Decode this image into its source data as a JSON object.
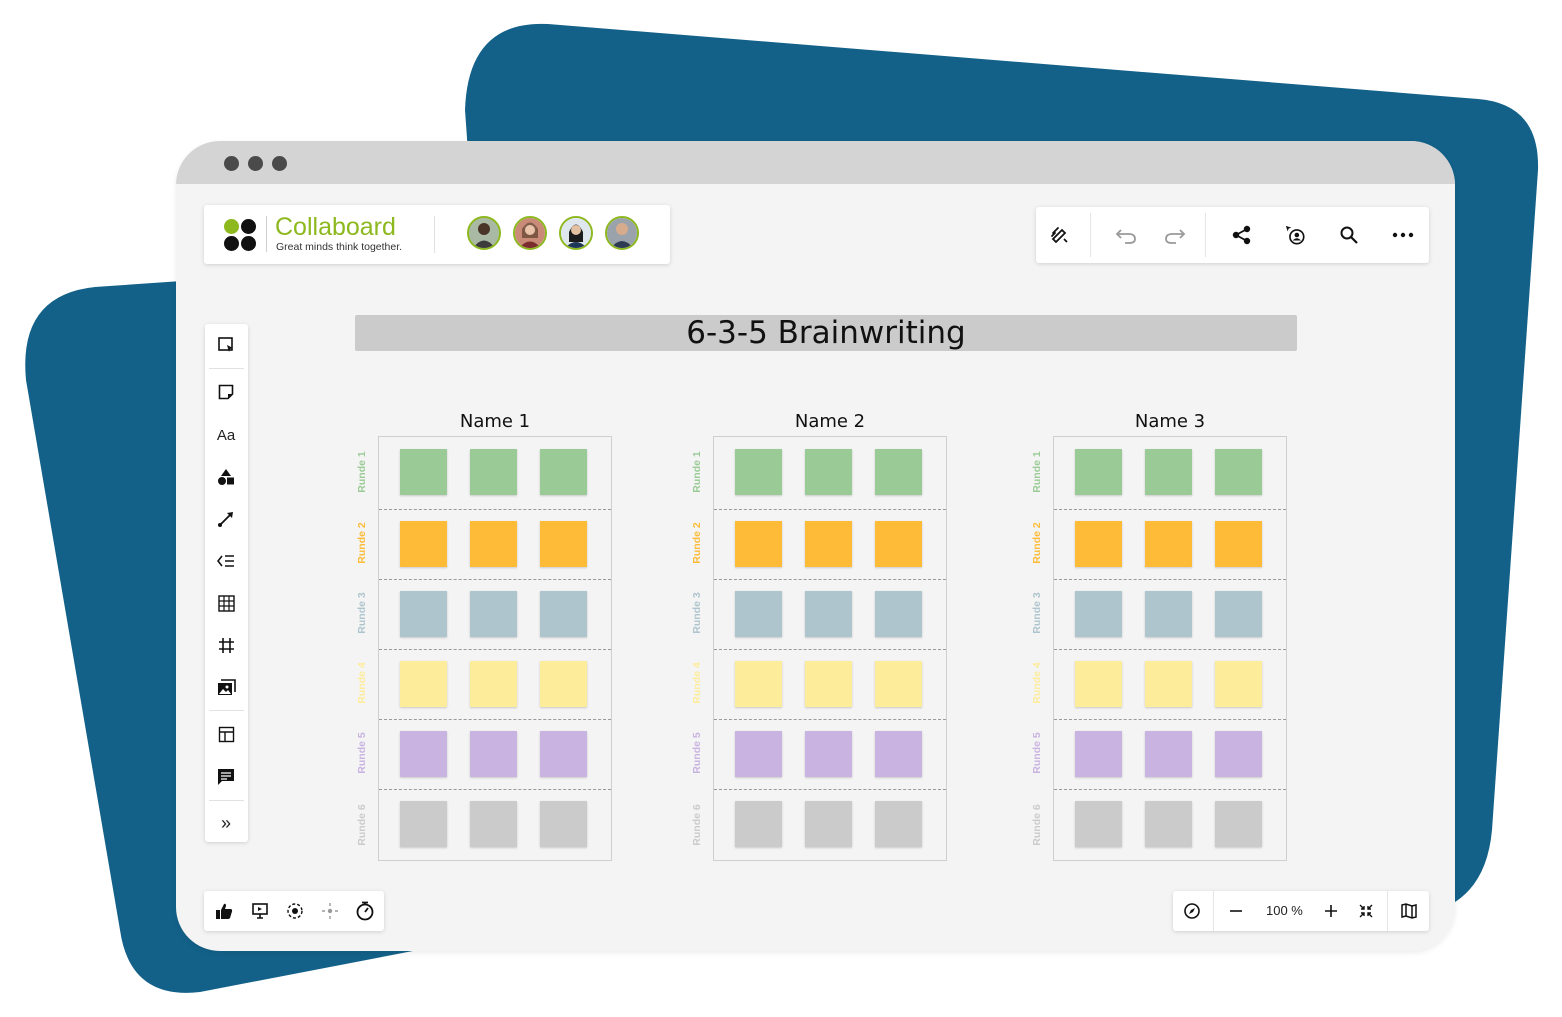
{
  "colors": {
    "backdrop": "#136189",
    "brand_green": "#8db81e",
    "round_1": "#9acb96",
    "round_2": "#fdbb37",
    "round_3": "#aec5ce",
    "round_4": "#fdec9a",
    "round_5": "#c9b3e1",
    "round_6": "#cbcbcb"
  },
  "brand": {
    "name": "Collaboard",
    "tagline": "Great minds think together."
  },
  "participants": [
    {
      "name": "participant-1"
    },
    {
      "name": "participant-2"
    },
    {
      "name": "participant-3"
    },
    {
      "name": "participant-4"
    }
  ],
  "toolbar_top": {
    "icons": [
      "magic-pen-icon",
      "undo-icon",
      "redo-icon",
      "share-icon",
      "follow-user-icon",
      "search-icon",
      "more-icon"
    ]
  },
  "sidebar": {
    "icons": [
      "select-frame-icon",
      "sticky-note-icon",
      "text-icon",
      "shapes-icon",
      "connector-icon",
      "mindmap-icon",
      "table-icon",
      "frame-icon",
      "media-icon",
      "template-icon",
      "comment-icon",
      "expand-icon"
    ],
    "text_tool_label": "Aa",
    "expand_label": "»"
  },
  "board": {
    "title": "6-3-5 Brainwriting",
    "columns": [
      {
        "name": "Name 1"
      },
      {
        "name": "Name 2"
      },
      {
        "name": "Name 3"
      }
    ],
    "rounds": [
      {
        "label": "Runde 1",
        "color": "#9acb96"
      },
      {
        "label": "Runde 2",
        "color": "#fdbb37"
      },
      {
        "label": "Runde 3",
        "color": "#aec5ce"
      },
      {
        "label": "Runde 4",
        "color": "#fdec9a"
      },
      {
        "label": "Runde 5",
        "color": "#c9b3e1"
      },
      {
        "label": "Runde 6",
        "color": "#cbcbcb"
      }
    ],
    "notes_per_round": 3
  },
  "bottom_left": {
    "icons": [
      "vote-icon",
      "presentation-icon",
      "focus-icon",
      "attention-icon",
      "timer-icon"
    ]
  },
  "bottom_right": {
    "icons": [
      "compass-icon",
      "zoom-out-icon",
      "zoom-in-icon",
      "fit-screen-icon",
      "map-icon"
    ],
    "zoom_value": "100 %"
  }
}
